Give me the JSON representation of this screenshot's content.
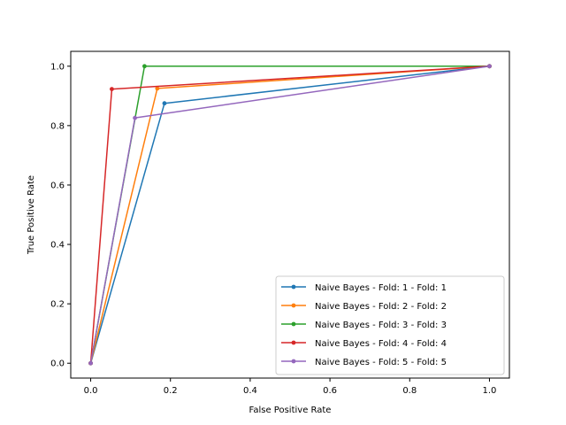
{
  "chart_data": {
    "type": "line",
    "title": "",
    "xlabel": "False Positive Rate",
    "ylabel": "True Positive Rate",
    "xlim": [
      -0.05,
      1.05
    ],
    "ylim": [
      -0.05,
      1.05
    ],
    "xticks": [
      "0.0",
      "0.2",
      "0.4",
      "0.6",
      "0.8",
      "1.0"
    ],
    "yticks": [
      "0.0",
      "0.2",
      "0.4",
      "0.6",
      "0.8",
      "1.0"
    ],
    "grid": false,
    "legend_position": "lower-right",
    "series": [
      {
        "name": "Naive Bayes - Fold: 1 - Fold: 1",
        "color": "#1f77b4",
        "x": [
          0.0,
          0.185,
          1.0
        ],
        "y": [
          0.0,
          0.875,
          1.0
        ]
      },
      {
        "name": "Naive Bayes - Fold: 2 - Fold: 2",
        "color": "#ff7f0e",
        "x": [
          0.0,
          0.167,
          1.0
        ],
        "y": [
          0.0,
          0.925,
          1.0
        ]
      },
      {
        "name": "Naive Bayes - Fold: 3 - Fold: 3",
        "color": "#2ca02c",
        "x": [
          0.0,
          0.135,
          1.0
        ],
        "y": [
          0.0,
          1.0,
          1.0
        ]
      },
      {
        "name": "Naive Bayes - Fold: 4 - Fold: 4",
        "color": "#d62728",
        "x": [
          0.0,
          0.053,
          1.0
        ],
        "y": [
          0.0,
          0.923,
          1.0
        ]
      },
      {
        "name": "Naive Bayes - Fold: 5 - Fold: 5",
        "color": "#9467bd",
        "x": [
          0.0,
          0.111,
          1.0
        ],
        "y": [
          0.0,
          0.826,
          1.0
        ]
      }
    ]
  }
}
